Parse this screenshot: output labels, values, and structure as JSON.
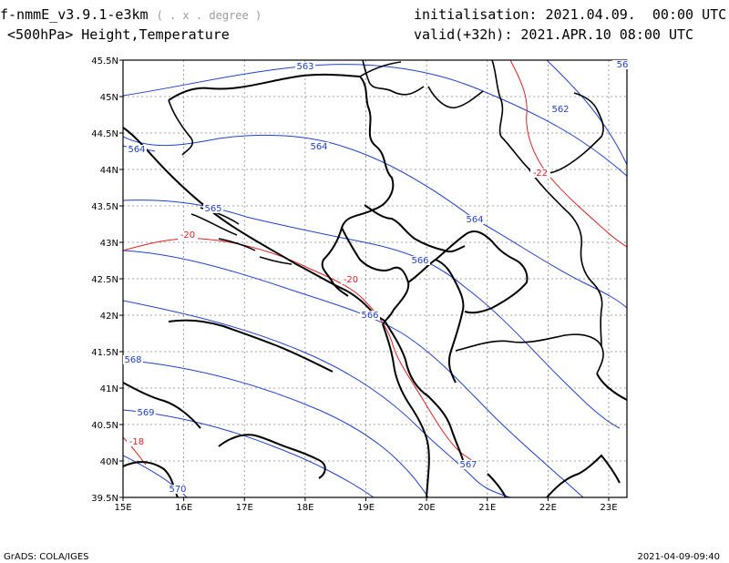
{
  "header": {
    "model": "f-nmmE_v3.9.1-e3km",
    "units": "( . x . degree )",
    "variable": "<500hPa> Height,Temperature",
    "init_label": "initialisation:",
    "init_value": "2021.04.09.  00:00 UTC",
    "valid_label": "valid(+32h):",
    "valid_value": "2021.APR.10 08:00 UTC"
  },
  "footer": {
    "left": "GrADS: COLA/IGES",
    "right": "2021-04-09-09:40"
  },
  "colors": {
    "height_contour": "#2040d0",
    "temperature_contour": "#e02020",
    "border": "#000000",
    "grid": "#888888"
  },
  "map": {
    "lon_range": [
      15,
      23.3
    ],
    "lat_range": [
      39.5,
      45.5
    ],
    "lon_ticks": [
      "15E",
      "16E",
      "17E",
      "18E",
      "19E",
      "20E",
      "21E",
      "22E",
      "23E"
    ],
    "lat_ticks": [
      "39.5N",
      "40N",
      "40.5N",
      "41N",
      "41.5N",
      "42N",
      "42.5N",
      "43N",
      "43.5N",
      "44N",
      "44.5N",
      "45N",
      "45.5N"
    ],
    "grid": true,
    "height_labels": [
      "563",
      "56",
      "562",
      "564",
      "564",
      "564",
      "565",
      "566",
      "566",
      "567",
      "568",
      "569",
      "570"
    ],
    "temperature_labels": [
      "-22",
      "-20",
      "-20",
      "-18"
    ]
  }
}
